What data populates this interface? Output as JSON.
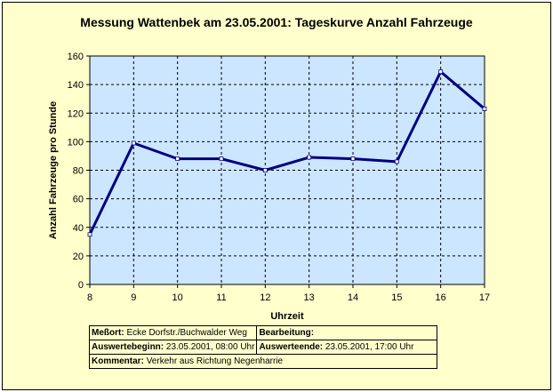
{
  "title": "Messung Wattenbek am 23.05.2001: Tageskurve Anzahl Fahrzeuge",
  "chart_data": {
    "type": "line",
    "title": "Messung Wattenbek am 23.05.2001: Tageskurve Anzahl Fahrzeuge",
    "xlabel": "Uhrzeit",
    "ylabel": "Anzahl Fahrzeuge pro Stunde",
    "x": [
      8,
      9,
      10,
      11,
      12,
      13,
      14,
      15,
      16,
      17
    ],
    "y": [
      35,
      99,
      88,
      88,
      80,
      89,
      88,
      86,
      149,
      123
    ],
    "ylim": [
      0,
      160
    ],
    "yticks": [
      0,
      20,
      40,
      60,
      80,
      100,
      120,
      140,
      160
    ],
    "xticks": [
      8,
      9,
      10,
      11,
      12,
      13,
      14,
      15,
      16,
      17
    ],
    "grid": true,
    "colors": {
      "line": "#000080",
      "plot_bg": "#cce6ff",
      "frame_bg": "#ffffcc"
    }
  },
  "info": {
    "messort_label": "Meßort:",
    "messort_value": "Ecke  Dorfstr./Buchwalder Weg",
    "bearbeitung_label": "Bearbeitung:",
    "bearbeitung_value": "",
    "beginn_label": "Auswertebeginn:",
    "beginn_value": "23.05.2001, 08:00 Uhr",
    "ende_label": "Auswerteende:",
    "ende_value": "23.05.2001, 17:00 Uhr",
    "kommentar_label": "Kommentar:",
    "kommentar_value": "Verkehr aus Richtung Negenharrie"
  }
}
